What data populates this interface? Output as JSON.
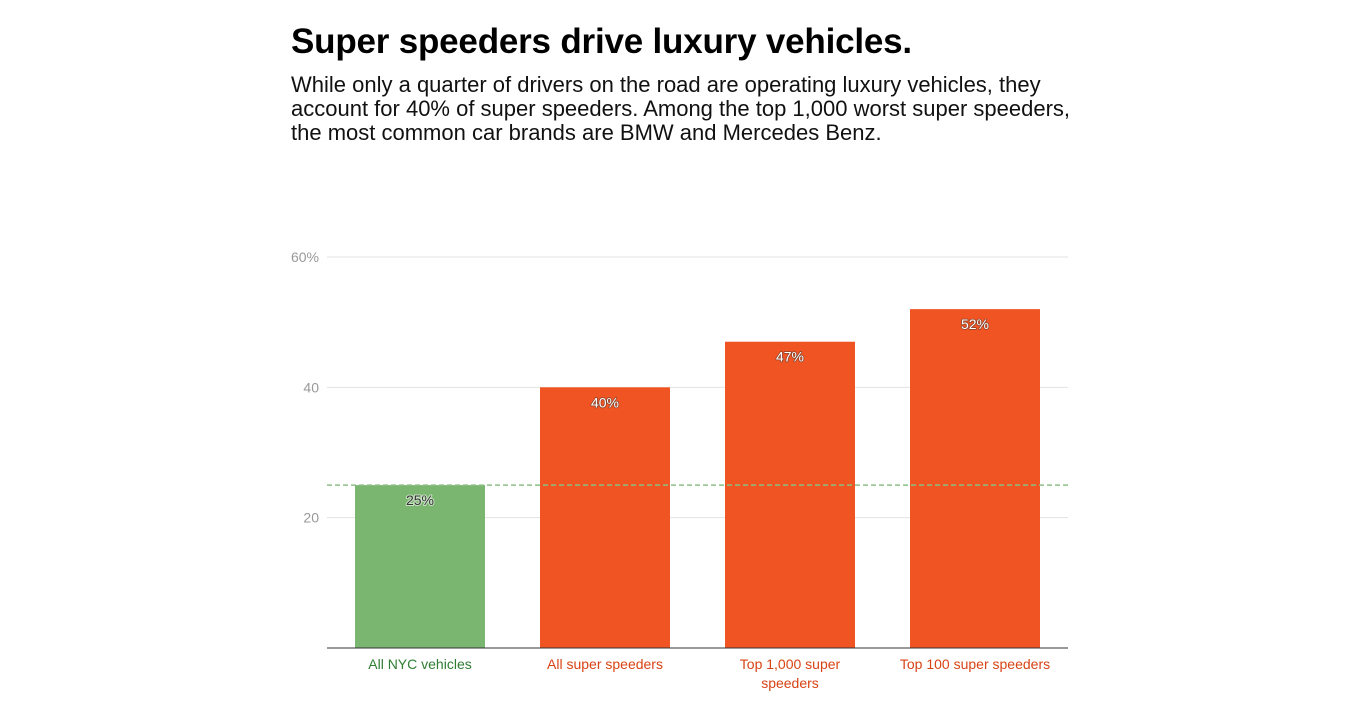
{
  "header": {
    "title": "Super speeders drive luxury vehicles.",
    "subtitle": "While only a quarter of drivers on the road are operating luxury vehicles, they account for 40% of super speeders. Among the top 1,000 worst super speeders, the most common car brands are BMW and Mercedes Benz."
  },
  "chart_data": {
    "type": "bar",
    "title": "Super speeders drive luxury vehicles.",
    "xlabel": "",
    "ylabel": "",
    "ylim": [
      0,
      60
    ],
    "yticks": [
      {
        "value": 20,
        "label": "20"
      },
      {
        "value": 40,
        "label": "40"
      },
      {
        "value": 60,
        "label": "60%"
      }
    ],
    "grid": true,
    "legend": "none",
    "categories": [
      {
        "lines": [
          "All NYC vehicles"
        ],
        "color": "#2e7d32"
      },
      {
        "lines": [
          "All super speeders"
        ],
        "color": "#d84315"
      },
      {
        "lines": [
          "Top 1,000 super",
          "speeders"
        ],
        "color": "#d84315"
      },
      {
        "lines": [
          "Top 100 super speeders"
        ],
        "color": "#d84315"
      }
    ],
    "values": [
      25,
      40,
      47,
      52
    ],
    "value_labels": [
      "25%",
      "40%",
      "47%",
      "52%"
    ],
    "bar_colors": [
      "#7ab66f",
      "#f05422",
      "#f05422",
      "#f05422"
    ],
    "reference_line": {
      "value": 25,
      "style": "dashed",
      "color": "#8cc083"
    }
  }
}
